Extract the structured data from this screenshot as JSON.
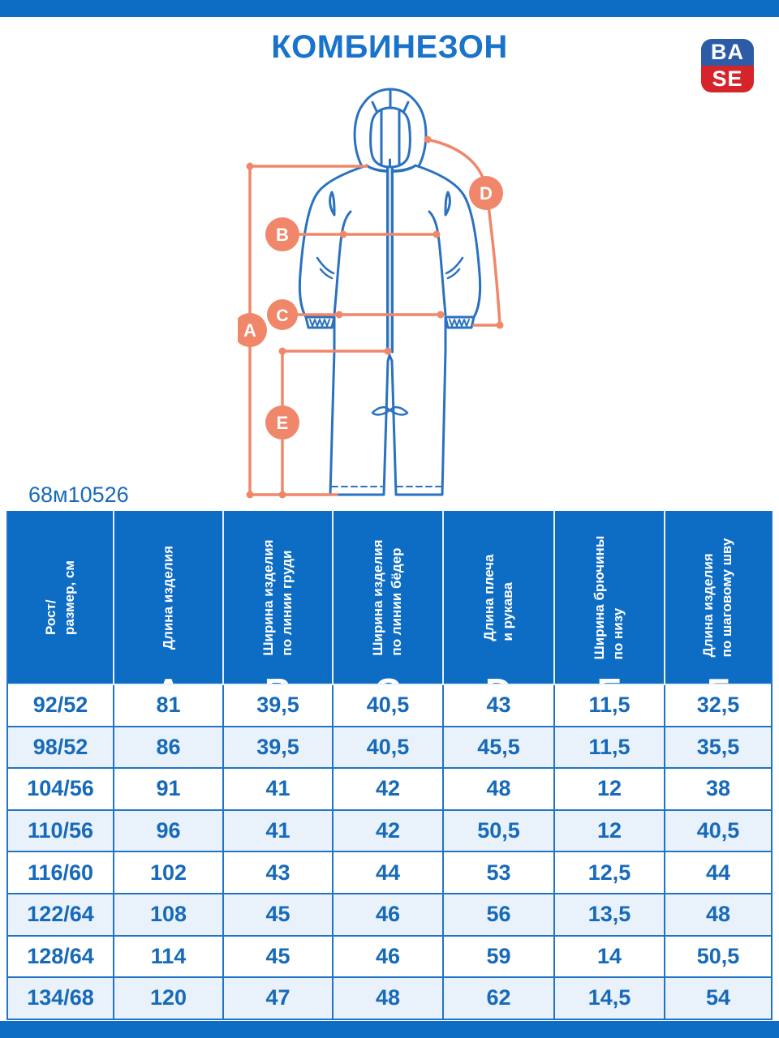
{
  "page": {
    "title": "КОМБИНЕЗОН",
    "product_code": "68м10526"
  },
  "logo": {
    "top": "BA",
    "bottom": "SE"
  },
  "colors": {
    "primary_blue": "#0D6CC4",
    "text_blue": "#176AB9",
    "border_blue": "#2174C5",
    "alt_row": "#E9F2FA",
    "drawing_stroke": "#2A72C0",
    "accent_orange": "#F0876A",
    "logo_blue": "#2C5CA5",
    "logo_red": "#D6242B"
  },
  "diagram": {
    "labels": [
      "A",
      "B",
      "C",
      "D",
      "E"
    ]
  },
  "table": {
    "columns": [
      {
        "lines": [
          "Рост/",
          "размер, см"
        ],
        "letter": ""
      },
      {
        "lines": [
          "Длина изделия"
        ],
        "letter": "A"
      },
      {
        "lines": [
          "Ширина изделия",
          "по линии груди"
        ],
        "letter": "B"
      },
      {
        "lines": [
          "Ширина изделия",
          "по линии бёдер"
        ],
        "letter": "C"
      },
      {
        "lines": [
          "Длина плеча",
          "и рукава"
        ],
        "letter": "D"
      },
      {
        "lines": [
          "Ширина брючины",
          "по низу"
        ],
        "letter": "E"
      },
      {
        "lines": [
          "Длина изделия",
          "по шаговому шву"
        ],
        "letter": "F"
      }
    ],
    "rows": [
      [
        "92/52",
        "81",
        "39,5",
        "40,5",
        "43",
        "11,5",
        "32,5"
      ],
      [
        "98/52",
        "86",
        "39,5",
        "40,5",
        "45,5",
        "11,5",
        "35,5"
      ],
      [
        "104/56",
        "91",
        "41",
        "42",
        "48",
        "12",
        "38"
      ],
      [
        "110/56",
        "96",
        "41",
        "42",
        "50,5",
        "12",
        "40,5"
      ],
      [
        "116/60",
        "102",
        "43",
        "44",
        "53",
        "12,5",
        "44"
      ],
      [
        "122/64",
        "108",
        "45",
        "46",
        "56",
        "13,5",
        "48"
      ],
      [
        "128/64",
        "114",
        "45",
        "46",
        "59",
        "14",
        "50,5"
      ],
      [
        "134/68",
        "120",
        "47",
        "48",
        "62",
        "14,5",
        "54"
      ]
    ]
  }
}
